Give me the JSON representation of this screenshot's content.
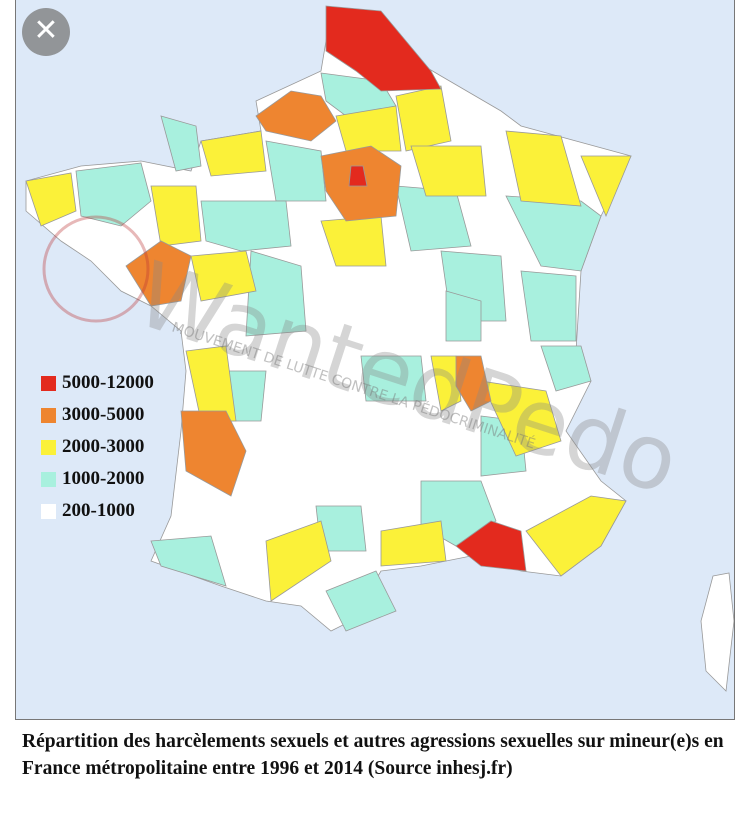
{
  "colors": {
    "sea": "#dde9f8",
    "c5000_12000": "#e32a1e",
    "c3000_5000": "#ee8530",
    "c2000_3000": "#fbf139",
    "c1000_2000": "#a8f0de",
    "c200_1000": "#ffffff"
  },
  "close_icon": "close-icon",
  "legend": [
    {
      "label": "5000-12000",
      "color": "#e32a1e"
    },
    {
      "label": "3000-5000",
      "color": "#ee8530"
    },
    {
      "label": "2000-3000",
      "color": "#fbf139"
    },
    {
      "label": "1000-2000",
      "color": "#a8f0de"
    },
    {
      "label": "200-1000",
      "color": "#ffffff"
    }
  ],
  "watermark": {
    "logo": "WantedPedo",
    "tagline": "MOUVEMENT DE LUTTE CONTRE LA PÉDOCRIMINALITÉ"
  },
  "caption": "Répartition des harcèlements sexuels et autres agressions sexuelles sur mineur(e)s en France métropolitaine entre 1996 et 2014 (Source inhesj.fr)"
}
